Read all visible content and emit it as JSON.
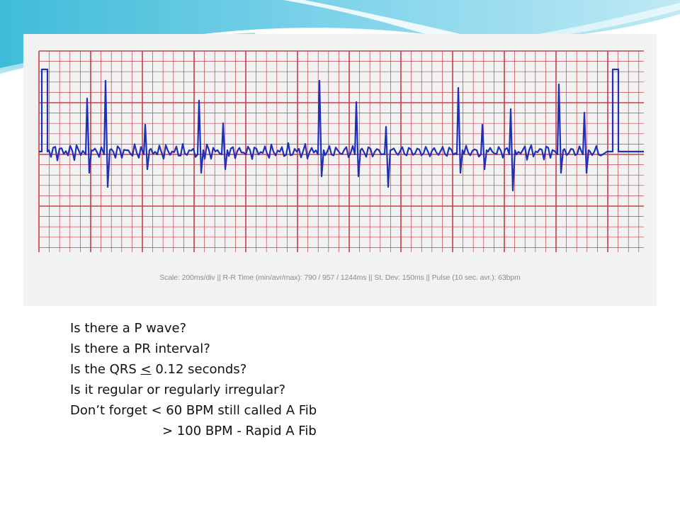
{
  "ecg": {
    "scale_caption": "Scale: 200ms/div || R-R Time (min/avr/max): 790 / 957 / 1244ms || St. Dev: 150ms || Pulse (10 sec. avr.): 63bpm",
    "grid_color": "#c0404a",
    "trace_color": "#1f2fb8",
    "background": "#f2f2f2"
  },
  "questions": {
    "line1": "Is there a P wave?",
    "line2": "Is there a PR interval?",
    "line3_prefix": "Is the QRS ",
    "line3_symbol": "<",
    "line3_suffix": " 0.12 seconds?",
    "line4": "Is it regular or regularly irregular?",
    "line5": "Don’t forget < 60 BPM still called A Fib",
    "line6": "> 100 BPM - Rapid A Fib"
  },
  "theme": {
    "header_colors": [
      "#4fc6e0",
      "#8fdaed",
      "#d6f1f8"
    ]
  }
}
